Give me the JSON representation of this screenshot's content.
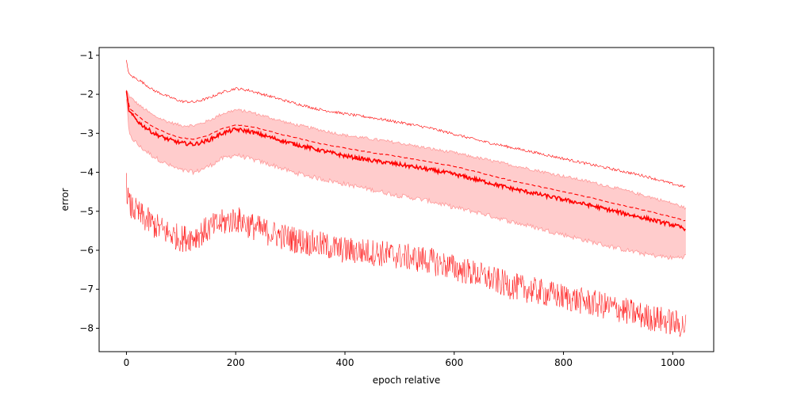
{
  "chart_data": {
    "type": "line",
    "title": "",
    "xlabel": "epoch relative",
    "ylabel": "error",
    "xlim": [
      -50,
      1075
    ],
    "ylim": [
      -8.6,
      -0.8
    ],
    "xticks": [
      0,
      200,
      400,
      600,
      800,
      1000
    ],
    "xtick_labels": [
      "0",
      "200",
      "400",
      "600",
      "800",
      "1000"
    ],
    "yticks": [
      -8,
      -7,
      -6,
      -5,
      -4,
      -3,
      -2,
      -1
    ],
    "ytick_labels": [
      "−8",
      "−7",
      "−6",
      "−5",
      "−4",
      "−3",
      "−2",
      "−1"
    ],
    "grid": false,
    "legend": "none",
    "colors": {
      "line": "#ff0000",
      "band_fill": "#ffcccc",
      "band_edge": "#ff9999"
    },
    "x": [
      0,
      5,
      25,
      50,
      75,
      100,
      125,
      150,
      175,
      200,
      225,
      250,
      275,
      300,
      350,
      400,
      450,
      500,
      550,
      600,
      650,
      700,
      750,
      800,
      850,
      900,
      950,
      1000,
      1024
    ],
    "series": [
      {
        "style": "thin-solid",
        "values": [
          -1.15,
          -1.5,
          -1.65,
          -1.9,
          -2.05,
          -2.18,
          -2.2,
          -2.1,
          -1.95,
          -1.85,
          -1.9,
          -2.0,
          -2.1,
          -2.2,
          -2.38,
          -2.5,
          -2.6,
          -2.72,
          -2.85,
          -3.02,
          -3.2,
          -3.35,
          -3.5,
          -3.65,
          -3.8,
          -3.95,
          -4.1,
          -4.3,
          -4.38
        ]
      },
      {
        "style": "dashed",
        "values": [
          -1.9,
          -2.35,
          -2.6,
          -2.85,
          -3.0,
          -3.12,
          -3.15,
          -3.05,
          -2.88,
          -2.78,
          -2.82,
          -2.9,
          -3.0,
          -3.08,
          -3.25,
          -3.38,
          -3.5,
          -3.6,
          -3.72,
          -3.85,
          -4.02,
          -4.2,
          -4.35,
          -4.5,
          -4.65,
          -4.82,
          -4.98,
          -5.15,
          -5.25
        ]
      },
      {
        "style": "thick-solid",
        "values": [
          -1.95,
          -2.45,
          -2.75,
          -3.0,
          -3.15,
          -3.25,
          -3.28,
          -3.18,
          -3.0,
          -2.9,
          -2.95,
          -3.05,
          -3.15,
          -3.25,
          -3.42,
          -3.58,
          -3.7,
          -3.8,
          -3.92,
          -4.05,
          -4.22,
          -4.4,
          -4.55,
          -4.7,
          -4.85,
          -5.02,
          -5.18,
          -5.35,
          -5.45
        ]
      },
      {
        "style": "band-upper",
        "values": [
          -1.9,
          -2.05,
          -2.3,
          -2.55,
          -2.7,
          -2.8,
          -2.8,
          -2.68,
          -2.5,
          -2.4,
          -2.45,
          -2.55,
          -2.65,
          -2.75,
          -2.9,
          -3.05,
          -3.15,
          -3.25,
          -3.38,
          -3.5,
          -3.65,
          -3.8,
          -3.95,
          -4.1,
          -4.25,
          -4.42,
          -4.6,
          -4.8,
          -4.92
        ]
      },
      {
        "style": "band-lower",
        "values": [
          -2.1,
          -3.05,
          -3.35,
          -3.6,
          -3.8,
          -3.95,
          -4.0,
          -3.85,
          -3.65,
          -3.55,
          -3.65,
          -3.75,
          -3.85,
          -3.98,
          -4.15,
          -4.3,
          -4.45,
          -4.6,
          -4.72,
          -4.9,
          -5.05,
          -5.25,
          -5.42,
          -5.6,
          -5.78,
          -5.95,
          -6.1,
          -6.2,
          -6.15
        ]
      },
      {
        "style": "noisy-solid",
        "values": [
          -4.35,
          -4.85,
          -5.1,
          -5.35,
          -5.55,
          -5.7,
          -5.65,
          -5.45,
          -5.3,
          -5.2,
          -5.35,
          -5.5,
          -5.6,
          -5.7,
          -5.85,
          -6.0,
          -6.05,
          -6.15,
          -6.25,
          -6.45,
          -6.65,
          -6.9,
          -7.05,
          -7.2,
          -7.35,
          -7.5,
          -7.7,
          -7.85,
          -7.95
        ]
      }
    ]
  }
}
